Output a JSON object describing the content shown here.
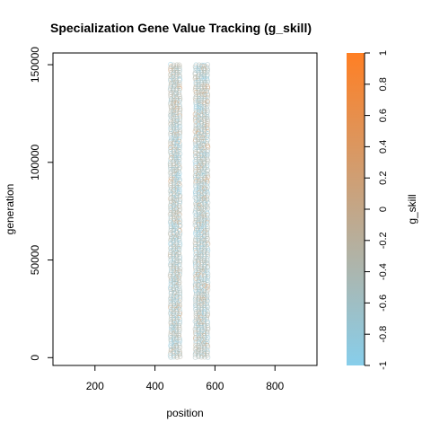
{
  "chart_data": {
    "type": "scatter",
    "title": "Specialization Gene Value Tracking (g_skill)",
    "xlabel": "position",
    "ylabel": "generation",
    "xlim": [
      60,
      940
    ],
    "ylim": [
      -4000,
      156000
    ],
    "xticks": [
      200,
      400,
      600,
      800
    ],
    "yticks": [
      0,
      50000,
      100000,
      150000
    ],
    "bands": [
      {
        "x_range": [
          447,
          497
        ],
        "y_range": [
          0,
          150000
        ]
      },
      {
        "x_range": [
          530,
          583
        ],
        "y_range": [
          0,
          150000
        ]
      }
    ],
    "colorbar": {
      "label": "g_skill",
      "range": [
        -1,
        1
      ],
      "ticks": [
        -1,
        -0.8,
        -0.6,
        -0.4,
        -0.2,
        0,
        0.2,
        0.4,
        0.6,
        0.8,
        1
      ],
      "tick_labels": [
        "-1",
        "-0.8",
        "-0.6",
        "-0.4",
        "-0.2",
        "0",
        "0.2",
        "0.4",
        "0.6",
        "0.8",
        "1"
      ],
      "low_color": "#87CEEB",
      "high_color": "#FF7F24"
    },
    "marker": "open-circle",
    "grid": false,
    "legend": "none"
  }
}
